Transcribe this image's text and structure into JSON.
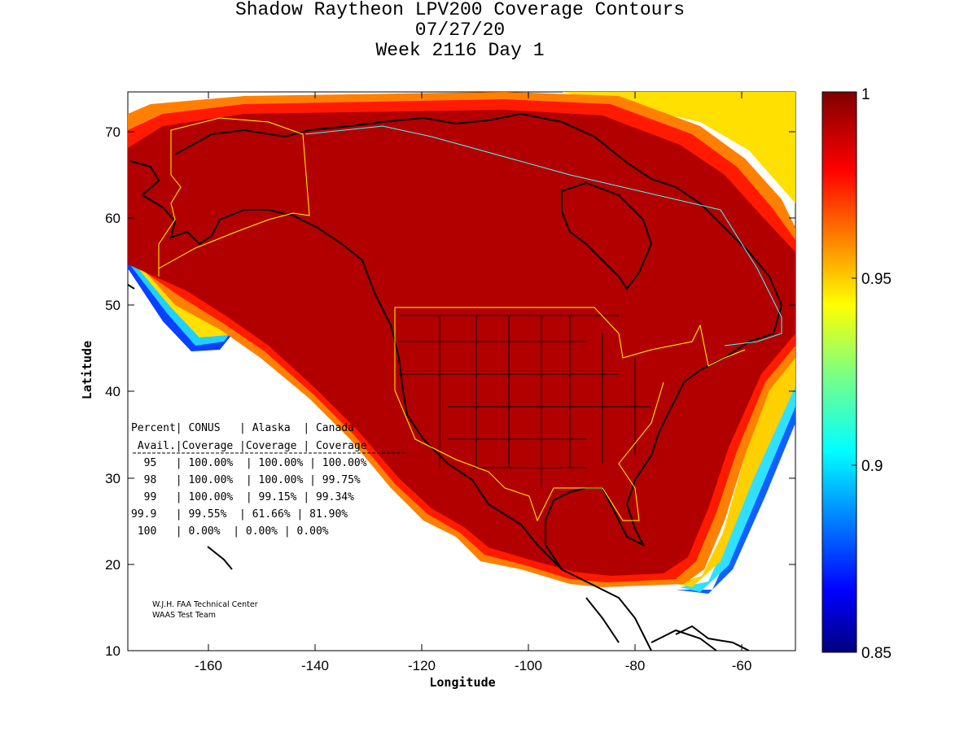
{
  "title": {
    "line1": "Shadow Raytheon LPV200 Coverage Contours",
    "line2": "07/27/20",
    "line3": "Week 2116 Day 1"
  },
  "axes": {
    "xlabel": "Longitude",
    "ylabel": "Latitude",
    "x_ticks": [
      "-160",
      "-140",
      "-120",
      "-100",
      "-80",
      "-60"
    ],
    "y_ticks": [
      "70",
      "60",
      "50",
      "40",
      "30",
      "20",
      "10"
    ],
    "xlim": [
      -175,
      -50
    ],
    "ylim": [
      10,
      75
    ]
  },
  "colorbar": {
    "ticks": [
      "1",
      "0.95",
      "0.9",
      "0.85"
    ],
    "range": [
      0.85,
      1.0
    ],
    "colormap": "jet"
  },
  "table": {
    "header1": "Percent| CONUS   | Alaska  | Canada",
    "header2": " Avail.|Coverage |Coverage | Coverage",
    "rows": [
      "  95   | 100.00%  | 100.00% | 100.00%",
      "  98   | 100.00%  | 100.00% | 99.75%",
      "  99   | 100.00%  | 99.15% | 99.34%",
      "99.9   | 99.55%  | 61.66% | 81.90%",
      " 100   | 0.00%  | 0.00% | 0.00%"
    ]
  },
  "credit": {
    "line1": "W.J.H. FAA Technical Center",
    "line2": "WAAS Test Team"
  },
  "chart_data": {
    "type": "heatmap",
    "title": "Shadow Raytheon LPV200 Coverage Contours",
    "xlabel": "Longitude",
    "ylabel": "Latitude",
    "xlim": [
      -175,
      -50
    ],
    "ylim": [
      10,
      75
    ],
    "color_range": [
      0.85,
      1.0
    ],
    "coverage_table": {
      "columns": [
        "Percent Avail.",
        "CONUS Coverage",
        "Alaska Coverage",
        "Canada Coverage"
      ],
      "rows": [
        [
          "95",
          "100.00%",
          "100.00%",
          "100.00%"
        ],
        [
          "98",
          "100.00%",
          "100.00%",
          "99.75%"
        ],
        [
          "99",
          "100.00%",
          "99.15%",
          "99.34%"
        ],
        [
          "99.9",
          "99.55%",
          "61.66%",
          "81.90%"
        ],
        [
          "100",
          "0.00%",
          "0.00%",
          "0.00%"
        ]
      ]
    }
  }
}
